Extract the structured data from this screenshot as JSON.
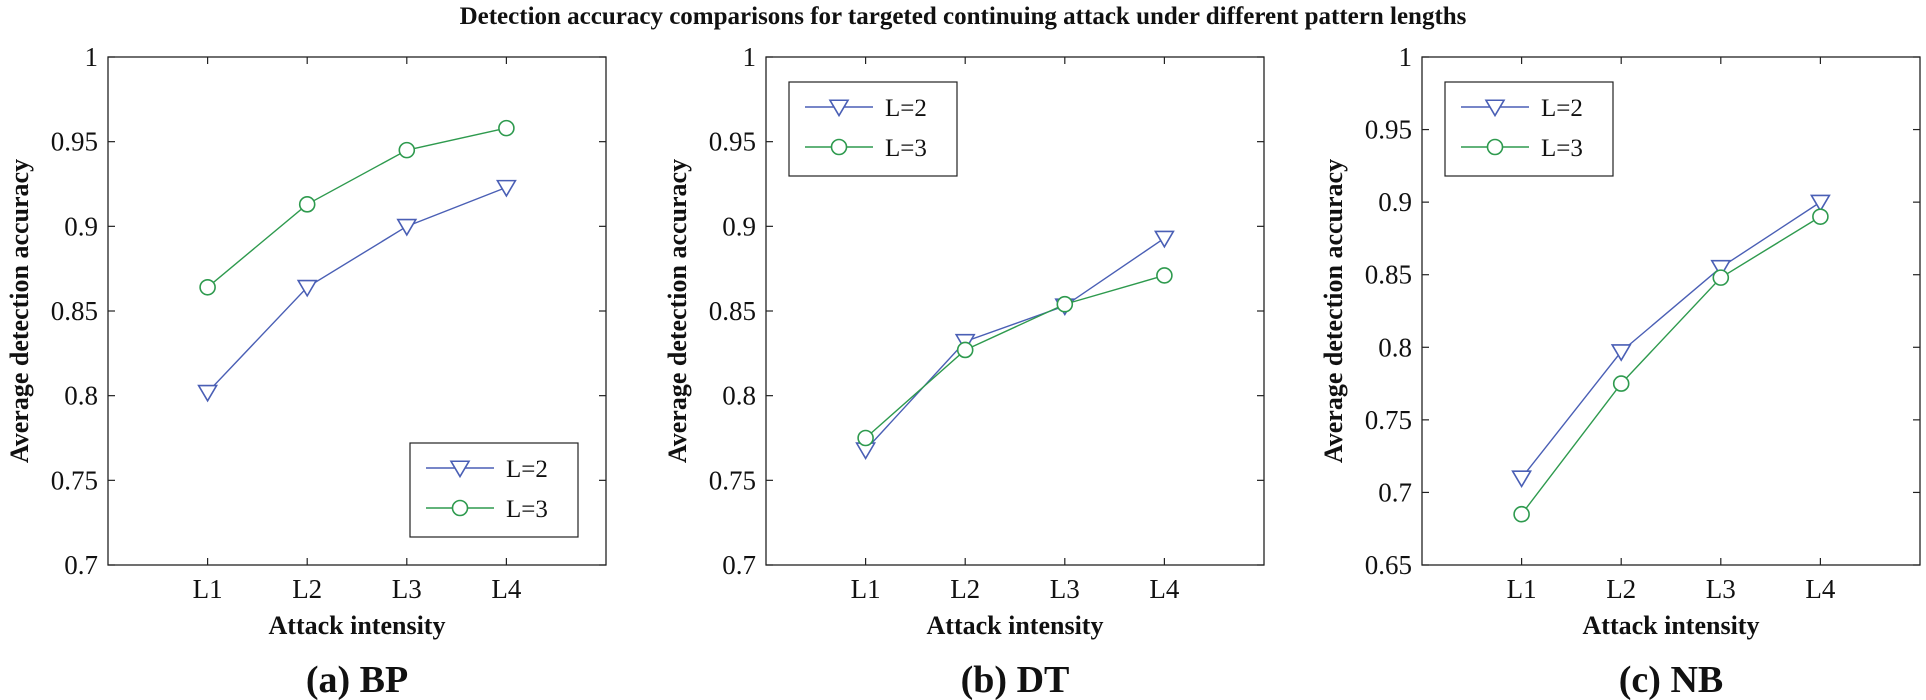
{
  "figure_title": "Detection accuracy comparisons for targeted continuing attack under different pattern lengths",
  "colors": {
    "series_l2": "#4a5fb5",
    "series_l3": "#2e9a4e",
    "axis": "#222222"
  },
  "chart_data": [
    {
      "type": "line",
      "caption": "(a) BP",
      "xlabel": "Attack intensity",
      "ylabel": "Average detection accuracy",
      "categories": [
        "L1",
        "L2",
        "L3",
        "L4"
      ],
      "ylim": [
        0.7,
        1
      ],
      "yticks": [
        0.7,
        0.75,
        0.8,
        0.85,
        0.9,
        0.95,
        1
      ],
      "ytick_labels": [
        "0.7",
        "0.75",
        "0.8",
        "0.85",
        "0.9",
        "0.95",
        "1"
      ],
      "legend_position": "bottom-right",
      "series": [
        {
          "name": "L=2",
          "marker": "triangle-down",
          "values": [
            0.802,
            0.864,
            0.9,
            0.923
          ]
        },
        {
          "name": "L=3",
          "marker": "circle",
          "values": [
            0.864,
            0.913,
            0.945,
            0.958
          ]
        }
      ]
    },
    {
      "type": "line",
      "caption": "(b) DT",
      "xlabel": "Attack intensity",
      "ylabel": "Average detection accuracy",
      "categories": [
        "L1",
        "L2",
        "L3",
        "L4"
      ],
      "ylim": [
        0.7,
        1
      ],
      "yticks": [
        0.7,
        0.75,
        0.8,
        0.85,
        0.9,
        0.95,
        1
      ],
      "ytick_labels": [
        "0.7",
        "0.75",
        "0.8",
        "0.85",
        "0.9",
        "0.95",
        "1"
      ],
      "legend_position": "top-left",
      "series": [
        {
          "name": "L=2",
          "marker": "triangle-down",
          "values": [
            0.768,
            0.832,
            0.853,
            0.893
          ]
        },
        {
          "name": "L=3",
          "marker": "circle",
          "values": [
            0.775,
            0.827,
            0.854,
            0.871
          ]
        }
      ]
    },
    {
      "type": "line",
      "caption": "(c) NB",
      "xlabel": "Attack intensity",
      "ylabel": "Average detection accuracy",
      "categories": [
        "L1",
        "L2",
        "L3",
        "L4"
      ],
      "ylim": [
        0.65,
        1
      ],
      "yticks": [
        0.65,
        0.7,
        0.75,
        0.8,
        0.85,
        0.9,
        0.95,
        1
      ],
      "ytick_labels": [
        "0.65",
        "0.7",
        "0.75",
        "0.8",
        "0.85",
        "0.9",
        "0.95",
        "1"
      ],
      "legend_position": "top-left",
      "series": [
        {
          "name": "L=2",
          "marker": "triangle-down",
          "values": [
            0.71,
            0.797,
            0.855,
            0.9
          ]
        },
        {
          "name": "L=3",
          "marker": "circle",
          "values": [
            0.685,
            0.775,
            0.848,
            0.89
          ]
        }
      ]
    }
  ]
}
